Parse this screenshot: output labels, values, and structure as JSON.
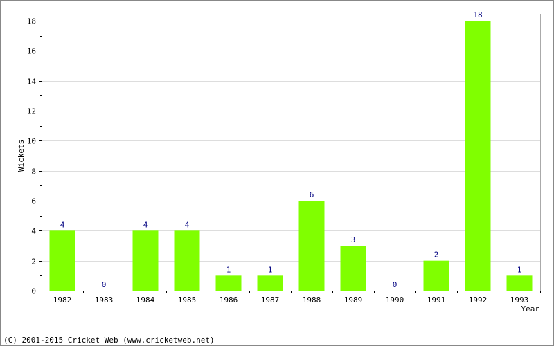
{
  "chart_data": {
    "type": "bar",
    "categories": [
      "1982",
      "1983",
      "1984",
      "1985",
      "1986",
      "1987",
      "1988",
      "1989",
      "1990",
      "1991",
      "1992",
      "1993"
    ],
    "values": [
      4,
      0,
      4,
      4,
      1,
      1,
      6,
      3,
      0,
      2,
      18,
      1
    ],
    "xlabel": "Year",
    "ylabel": "Wickets",
    "ylim": [
      0,
      18
    ],
    "yticks": [
      0,
      2,
      4,
      6,
      8,
      10,
      12,
      14,
      16,
      18
    ],
    "grid": true,
    "colors": {
      "bar": "#80ff00",
      "data_label": "#000080",
      "grid": "#dddddd",
      "frame": "#888888"
    }
  },
  "footer": {
    "copyright": "(C) 2001-2015 Cricket Web (www.cricketweb.net)"
  }
}
